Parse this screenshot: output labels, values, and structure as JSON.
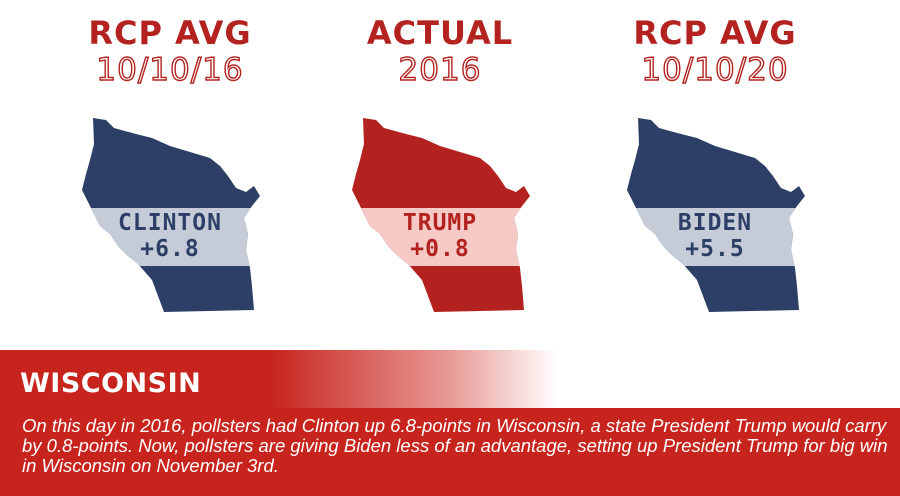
{
  "panels": [
    {
      "heading": "RCP AVG",
      "subheading": "10/10/16",
      "candidate": "CLINTON",
      "margin": "+6.8",
      "base_color": "#2d3f66",
      "band_color": "#c5ccd8",
      "text_color": "#2d3f66"
    },
    {
      "heading": "ACTUAL",
      "subheading": "2016",
      "candidate": "TRUMP",
      "margin": "+0.8",
      "base_color": "#b3221f",
      "band_color": "#f4c9c6",
      "text_color": "#b3221f"
    },
    {
      "heading": "RCP AVG",
      "subheading": "10/10/20",
      "candidate": "BIDEN",
      "margin": "+5.5",
      "base_color": "#2d3f66",
      "band_color": "#c5ccd8",
      "text_color": "#2d3f66"
    }
  ],
  "state": "WISCONSIN",
  "description": "On this day in 2016, pollsters had Clinton up 6.8-points in Wisconsin, a state President Trump would carry by 0.8-points. Now, pollsters are giving Biden less of an advantage, setting up President Trump for big win in Wisconsin on November 3rd.",
  "colors": {
    "accent_red": "#c8241e",
    "navy": "#2d3f66"
  }
}
